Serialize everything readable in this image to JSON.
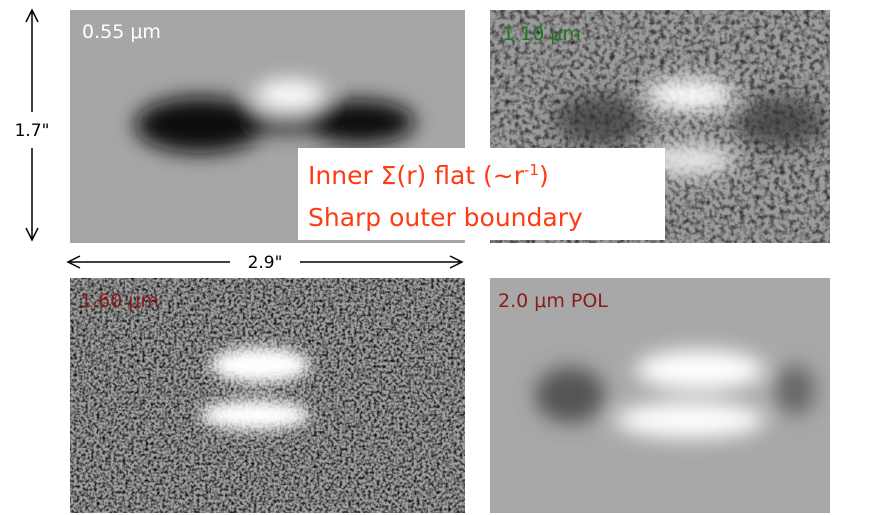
{
  "panels": [
    {
      "label": "0.55 μm"
    },
    {
      "label": "1.10 μm"
    },
    {
      "label": "1.60 μm"
    },
    {
      "label": "2.0 μm POL"
    }
  ],
  "scale": {
    "height": "1.7\"",
    "width": "2.9\""
  },
  "annotation": {
    "line1": {
      "before": "Inner Σ(r) flat (~r",
      "sup": "-1",
      "after": ")"
    },
    "line2": "Sharp outer boundary"
  }
}
